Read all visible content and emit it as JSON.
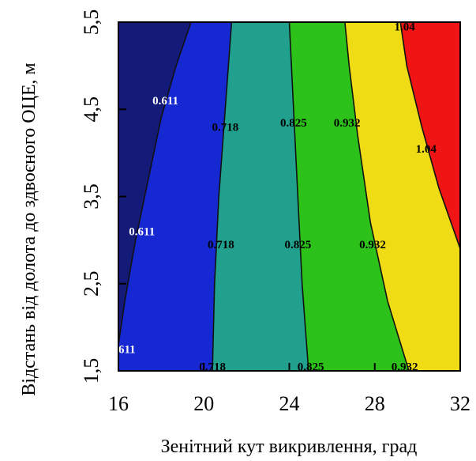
{
  "chart_data": {
    "type": "contour",
    "title": "",
    "xlabel": "Зенітний кут викривлення, град",
    "ylabel": "Відстань від долота до здвоєного ОЦЕ, м",
    "xlim": [
      16,
      32
    ],
    "ylim": [
      1.5,
      5.5
    ],
    "x_ticks": [
      16,
      20,
      24,
      28,
      32
    ],
    "x_tick_labels": [
      "16",
      "20",
      "24",
      "28",
      "32"
    ],
    "y_ticks": [
      1.5,
      2.5,
      3.5,
      4.5,
      5.5
    ],
    "y_tick_labels": [
      "1,5",
      "2,5",
      "3,5",
      "4,5",
      "5,5"
    ],
    "grid": false,
    "levels": [
      0.611,
      0.718,
      0.825,
      0.932,
      1.04
    ],
    "bands": [
      {
        "range": "< 0.611",
        "color": "#141a78"
      },
      {
        "range": "0.611 – 0.718",
        "color": "#1628d2"
      },
      {
        "range": "0.718 – 0.825",
        "color": "#22a08e"
      },
      {
        "range": "0.825 – 0.932",
        "color": "#2cc21a"
      },
      {
        "range": "0.932 – 1.04",
        "color": "#f0dc14"
      },
      {
        "range": "> 1.04",
        "color": "#f01414"
      }
    ],
    "contours": [
      {
        "level": 0.611,
        "points": [
          [
            16.0,
            1.8
          ],
          [
            16.3,
            2.3
          ],
          [
            16.8,
            3.0
          ],
          [
            17.4,
            3.7
          ],
          [
            18.0,
            4.4
          ],
          [
            18.7,
            5.0
          ],
          [
            19.4,
            5.5
          ]
        ]
      },
      {
        "level": 0.718,
        "points": [
          [
            20.4,
            1.5
          ],
          [
            20.5,
            2.5
          ],
          [
            20.7,
            3.5
          ],
          [
            21.0,
            4.5
          ],
          [
            21.3,
            5.5
          ]
        ]
      },
      {
        "level": 0.825,
        "points": [
          [
            24.9,
            1.5
          ],
          [
            24.6,
            2.5
          ],
          [
            24.4,
            3.5
          ],
          [
            24.2,
            4.5
          ],
          [
            24.0,
            5.5
          ]
        ]
      },
      {
        "level": 0.932,
        "points": [
          [
            29.6,
            1.5
          ],
          [
            28.6,
            2.3
          ],
          [
            27.8,
            3.2
          ],
          [
            27.2,
            4.2
          ],
          [
            26.8,
            5.0
          ],
          [
            26.6,
            5.5
          ]
        ]
      },
      {
        "level": 1.04,
        "points": [
          [
            32.0,
            2.9
          ],
          [
            31.0,
            3.6
          ],
          [
            30.2,
            4.3
          ],
          [
            29.5,
            5.0
          ],
          [
            29.2,
            5.5
          ]
        ]
      }
    ],
    "contour_labels": [
      {
        "text": "0.611",
        "x": 18.2,
        "y": 4.6,
        "color": "#ffffff"
      },
      {
        "text": "0.611",
        "x": 17.1,
        "y": 3.1,
        "color": "#ffffff"
      },
      {
        "text": "611",
        "x": 16.4,
        "y": 1.75,
        "color": "#ffffff"
      },
      {
        "text": "0.718",
        "x": 21.0,
        "y": 4.3,
        "color": "#000000"
      },
      {
        "text": "0.718",
        "x": 20.8,
        "y": 2.95,
        "color": "#000000"
      },
      {
        "text": "0.718",
        "x": 20.4,
        "y": 1.55,
        "color": "#000000"
      },
      {
        "text": "0.825",
        "x": 24.2,
        "y": 4.35,
        "color": "#000000"
      },
      {
        "text": "0.825",
        "x": 24.4,
        "y": 2.95,
        "color": "#000000"
      },
      {
        "text": "0.825",
        "x": 25.0,
        "y": 1.55,
        "color": "#000000"
      },
      {
        "text": "0.932",
        "x": 26.7,
        "y": 4.35,
        "color": "#000000"
      },
      {
        "text": "0.932",
        "x": 27.9,
        "y": 2.95,
        "color": "#000000"
      },
      {
        "text": "0.932",
        "x": 29.4,
        "y": 1.55,
        "color": "#000000"
      },
      {
        "text": "1.04",
        "x": 30.4,
        "y": 4.05,
        "color": "#000000"
      },
      {
        "text": "1.04",
        "x": 29.4,
        "y": 5.45,
        "color": "#000000"
      }
    ]
  }
}
